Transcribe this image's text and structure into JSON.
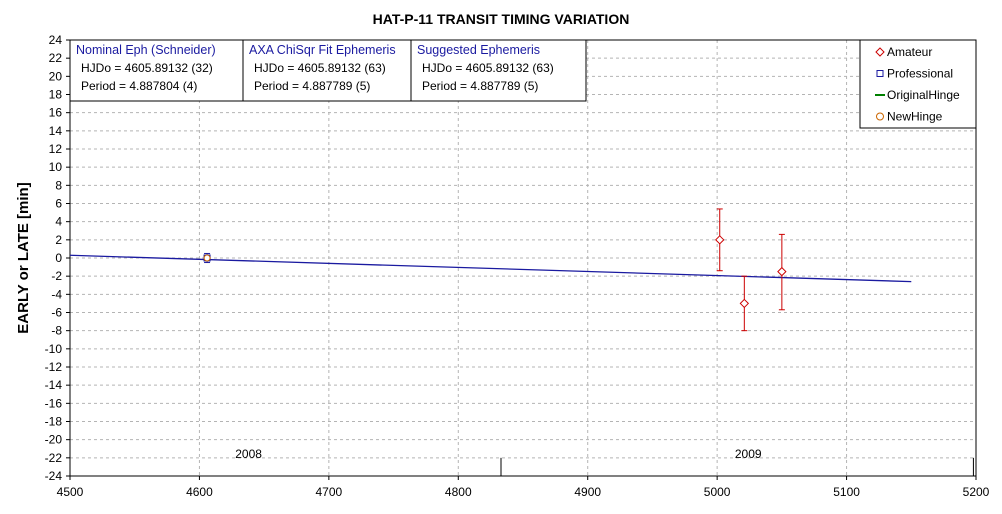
{
  "chart_data": {
    "type": "scatter",
    "title": "HAT-P-11 TRANSIT TIMING VARIATION",
    "xlabel": "",
    "ylabel": "EARLY or LATE [min]",
    "xlim": [
      4500,
      5200
    ],
    "ylim": [
      -24,
      24
    ],
    "x_ticks": [
      4500,
      4600,
      4700,
      4800,
      4900,
      5000,
      5100,
      5200
    ],
    "y_ticks": [
      -24,
      -22,
      -20,
      -18,
      -16,
      -14,
      -12,
      -10,
      -8,
      -6,
      -4,
      -2,
      0,
      2,
      4,
      6,
      8,
      10,
      12,
      14,
      16,
      18,
      20,
      22,
      24
    ],
    "grid": true,
    "legend_position": "top-right",
    "legend": [
      {
        "label": "Amateur",
        "marker": "diamond",
        "color": "#cc0000"
      },
      {
        "label": "Professional",
        "marker": "square",
        "color": "#1a1aa0"
      },
      {
        "label": "OriginalHinge",
        "marker": "line",
        "color": "#008000"
      },
      {
        "label": "NewHinge",
        "marker": "circle",
        "color": "#cc6600"
      }
    ],
    "series": [
      {
        "name": "Amateur",
        "color": "#cc0000",
        "points": [
          {
            "x": 5002,
            "y": 2.0,
            "err_lo": -1.4,
            "err_hi": 5.4
          },
          {
            "x": 5021,
            "y": -5.0,
            "err_lo": -8.0,
            "err_hi": -2.0
          },
          {
            "x": 5050,
            "y": -1.5,
            "err_lo": -5.7,
            "err_hi": 2.6
          }
        ]
      },
      {
        "name": "Professional",
        "color": "#1a1aa0",
        "points": [
          {
            "x": 4605.9,
            "y": 0.0,
            "err_lo": -0.5,
            "err_hi": 0.5
          }
        ]
      },
      {
        "name": "NewHinge",
        "color": "#cc6600",
        "points": [
          {
            "x": 4605.9,
            "y": 0.0
          }
        ]
      }
    ],
    "fit_line": {
      "x": [
        4500,
        5150
      ],
      "y": [
        0.3,
        -2.6
      ],
      "color": "#1a1aa0"
    },
    "year_labels": [
      {
        "label": "2008",
        "x": 4638
      },
      {
        "label": "2009",
        "x": 5024
      }
    ],
    "year_markers": [
      4833,
      5198
    ],
    "ephemerides": [
      {
        "title": "Nominal Eph (Schneider)",
        "hjd": "HJDo = 4605.89132 (32)",
        "period": "Period = 4.887804 (4)"
      },
      {
        "title": "AXA ChiSqr Fit Ephemeris",
        "hjd": "HJDo = 4605.89132 (63)",
        "period": "Period = 4.887789 (5)"
      },
      {
        "title": "Suggested Ephemeris",
        "hjd": "HJDo = 4605.89132 (63)",
        "period": "Period = 4.887789 (5)"
      }
    ]
  }
}
